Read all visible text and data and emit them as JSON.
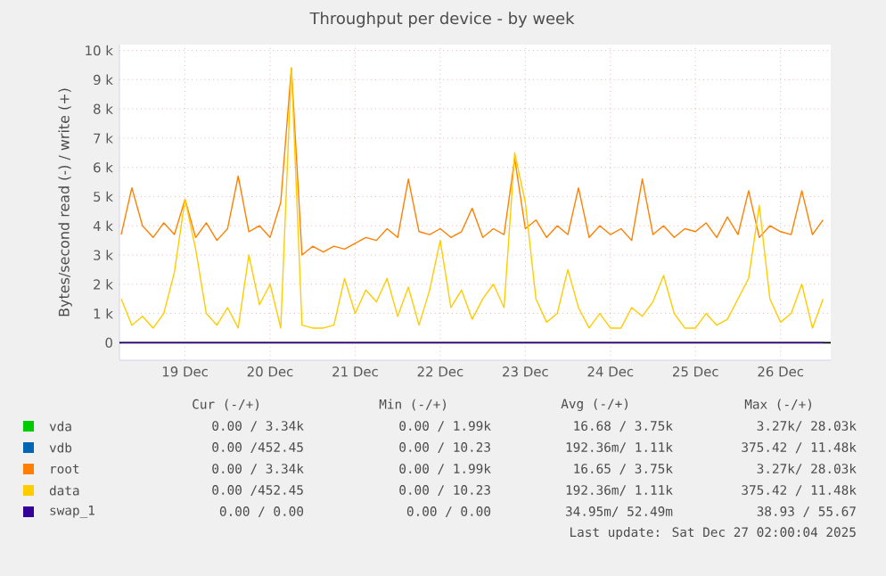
{
  "chart_data": {
    "type": "line",
    "title": "Throughput per device - by week",
    "ylabel": "Bytes/second read (-) / write (+)",
    "x": [
      "2025-12-18T06:00",
      "2025-12-18T09:00",
      "2025-12-18T12:00",
      "2025-12-18T15:00",
      "2025-12-18T18:00",
      "2025-12-18T21:00",
      "2025-12-19T00:00",
      "2025-12-19T03:00",
      "2025-12-19T06:00",
      "2025-12-19T09:00",
      "2025-12-19T12:00",
      "2025-12-19T15:00",
      "2025-12-19T18:00",
      "2025-12-19T21:00",
      "2025-12-20T00:00",
      "2025-12-20T03:00",
      "2025-12-20T06:00",
      "2025-12-20T09:00",
      "2025-12-20T12:00",
      "2025-12-20T15:00",
      "2025-12-20T18:00",
      "2025-12-20T21:00",
      "2025-12-21T00:00",
      "2025-12-21T03:00",
      "2025-12-21T06:00",
      "2025-12-21T09:00",
      "2025-12-21T12:00",
      "2025-12-21T15:00",
      "2025-12-21T18:00",
      "2025-12-21T21:00",
      "2025-12-22T00:00",
      "2025-12-22T03:00",
      "2025-12-22T06:00",
      "2025-12-22T09:00",
      "2025-12-22T12:00",
      "2025-12-22T15:00",
      "2025-12-22T18:00",
      "2025-12-22T21:00",
      "2025-12-23T00:00",
      "2025-12-23T03:00",
      "2025-12-23T06:00",
      "2025-12-23T09:00",
      "2025-12-23T12:00",
      "2025-12-23T15:00",
      "2025-12-23T18:00",
      "2025-12-23T21:00",
      "2025-12-24T00:00",
      "2025-12-24T03:00",
      "2025-12-24T06:00",
      "2025-12-24T09:00",
      "2025-12-24T12:00",
      "2025-12-24T15:00",
      "2025-12-24T18:00",
      "2025-12-24T21:00",
      "2025-12-25T00:00",
      "2025-12-25T03:00",
      "2025-12-25T06:00",
      "2025-12-25T09:00",
      "2025-12-25T12:00",
      "2025-12-25T15:00",
      "2025-12-25T18:00",
      "2025-12-25T21:00",
      "2025-12-26T00:00",
      "2025-12-26T03:00",
      "2025-12-26T06:00",
      "2025-12-26T09:00",
      "2025-12-26T12:00"
    ],
    "series": [
      {
        "name": "vda",
        "color": "#00cc00",
        "values": [
          null,
          null,
          null,
          null,
          null,
          null,
          null,
          null,
          null,
          null,
          null,
          null,
          null,
          null,
          null,
          null,
          null,
          null,
          null,
          null,
          null,
          null,
          null,
          null,
          null,
          null,
          null,
          null,
          null,
          null,
          null,
          null,
          null,
          null,
          null,
          null,
          null,
          null,
          null,
          null,
          null,
          null,
          null,
          null,
          null,
          null,
          null,
          null,
          null,
          null,
          null,
          null,
          null,
          null,
          null,
          null,
          null,
          null,
          null,
          null,
          null,
          null,
          null,
          null,
          null,
          null,
          null
        ]
      },
      {
        "name": "vdb",
        "color": "#0066b3",
        "values": [
          null,
          null,
          null,
          null,
          null,
          null,
          null,
          null,
          null,
          null,
          null,
          null,
          null,
          null,
          null,
          null,
          null,
          null,
          null,
          null,
          null,
          null,
          null,
          null,
          null,
          null,
          null,
          null,
          null,
          null,
          null,
          null,
          null,
          null,
          null,
          null,
          null,
          null,
          null,
          null,
          null,
          null,
          null,
          null,
          null,
          null,
          null,
          null,
          null,
          null,
          null,
          null,
          null,
          null,
          null,
          null,
          null,
          null,
          null,
          null,
          null,
          null,
          null,
          null,
          null,
          null,
          null
        ]
      },
      {
        "name": "root",
        "color": "#ff8000",
        "values": [
          3700,
          5300,
          4000,
          3600,
          4100,
          3700,
          4900,
          3600,
          4100,
          3500,
          3900,
          5700,
          3800,
          4000,
          3600,
          4800,
          9400,
          3000,
          3300,
          3100,
          3300,
          3200,
          3400,
          3600,
          3500,
          3900,
          3600,
          5600,
          3800,
          3700,
          3900,
          3600,
          3800,
          4600,
          3600,
          3900,
          3700,
          6300,
          3900,
          4200,
          3600,
          4000,
          3700,
          5300,
          3600,
          4000,
          3700,
          3900,
          3500,
          5600,
          3700,
          4000,
          3600,
          3900,
          3800,
          4100,
          3600,
          4300,
          3700,
          5200,
          3600,
          4000,
          3800,
          3700,
          5200,
          3700,
          4200
        ]
      },
      {
        "name": "data",
        "color": "#ffcc00",
        "values": [
          1500,
          600,
          900,
          500,
          1000,
          2400,
          4900,
          3200,
          1000,
          600,
          1200,
          500,
          3000,
          1300,
          2000,
          500,
          9400,
          600,
          500,
          500,
          600,
          2200,
          1000,
          1800,
          1400,
          2200,
          900,
          1900,
          600,
          1800,
          3500,
          1200,
          1800,
          800,
          1500,
          2000,
          1200,
          6500,
          4800,
          1500,
          700,
          1000,
          2500,
          1200,
          500,
          1000,
          500,
          500,
          1200,
          900,
          1400,
          2300,
          1000,
          500,
          500,
          1000,
          600,
          800,
          1500,
          2200,
          4700,
          1500,
          700,
          1000,
          2000,
          500,
          1500
        ]
      },
      {
        "name": "swap_1",
        "color": "#330099",
        "x": [
          "2025-12-18T06:00",
          "2025-12-26T12:00"
        ],
        "values": [
          0,
          0
        ]
      }
    ],
    "xlim": [
      "2025-12-18T05:30",
      "2025-12-26T14:10"
    ],
    "xticks": [
      {
        "value": "2025-12-19",
        "label": "19 Dec"
      },
      {
        "value": "2025-12-20",
        "label": "20 Dec"
      },
      {
        "value": "2025-12-21",
        "label": "21 Dec"
      },
      {
        "value": "2025-12-22",
        "label": "22 Dec"
      },
      {
        "value": "2025-12-23",
        "label": "23 Dec"
      },
      {
        "value": "2025-12-24",
        "label": "24 Dec"
      },
      {
        "value": "2025-12-25",
        "label": "25 Dec"
      },
      {
        "value": "2025-12-26",
        "label": "26 Dec"
      }
    ],
    "ylim": [
      -600,
      10200
    ],
    "yticks": [
      0,
      {
        "value": 1000,
        "label": "1 k"
      },
      {
        "value": 2000,
        "label": "2 k"
      },
      {
        "value": 3000,
        "label": "3 k"
      },
      {
        "value": 4000,
        "label": "4 k"
      },
      {
        "value": 5000,
        "label": "5 k"
      },
      {
        "value": 6000,
        "label": "6 k"
      },
      {
        "value": 7000,
        "label": "7 k"
      },
      {
        "value": 8000,
        "label": "8 k"
      },
      {
        "value": 9000,
        "label": "9 k"
      },
      {
        "value": 10000,
        "label": "10 k"
      }
    ],
    "ref_lines": [
      {
        "axis": "y",
        "value": 0,
        "color": "#000000"
      }
    ],
    "grid": true,
    "legend": "bottom",
    "marker": "none",
    "line_style": "solid",
    "annotations": [
      "Cur (-/+)",
      "Min (-/+)",
      "Avg (-/+)",
      "Max (-/+)",
      "0.00 / 3.34k",
      "0.00 / 1.99k",
      "16.68 / 3.75k",
      "3.27k/ 28.03k",
      "0.00 /452.45",
      "0.00 / 10.23",
      "192.36m/ 1.11k",
      "375.42 / 11.48k",
      "0.00 / 3.34k",
      "0.00 / 1.99k",
      "16.65 / 3.75k",
      "3.27k/ 28.03k",
      "0.00 /452.45",
      "0.00 / 10.23",
      "192.36m/ 1.11k",
      "375.42 / 11.48k",
      "0.00 / 0.00",
      "0.00 / 0.00",
      "34.95m/ 52.49m",
      "38.93 / 55.67",
      "Last update: Sat Dec 27 02:00:04 2025"
    ]
  }
}
